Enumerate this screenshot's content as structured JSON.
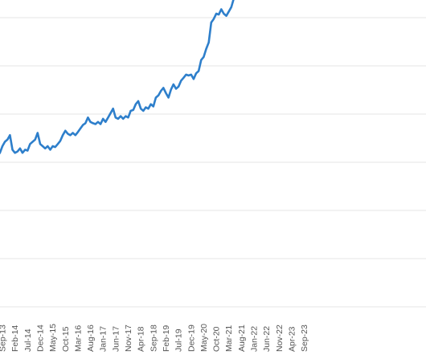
{
  "chart_data": {
    "type": "line",
    "title": "",
    "xlabel": "",
    "ylabel": "",
    "grid": true,
    "legend": "none",
    "y_gridline_count": 7,
    "tick_labels": [
      "Sep-13",
      "Feb-14",
      "Jul-14",
      "Dec-14",
      "May-15",
      "Oct-15",
      "Mar-16",
      "Aug-16",
      "Jan-17",
      "Jun-17",
      "Nov-17",
      "Apr-18",
      "Sep-18",
      "Feb-19",
      "Jul-19",
      "Dec-19",
      "May-20",
      "Oct-20",
      "Mar-21",
      "Aug-21",
      "Jan-22",
      "Jun-22",
      "Nov-22",
      "Apr-23",
      "Sep-23"
    ],
    "colors": {
      "line": "#2e7fcb",
      "grid": "#e6e6e6",
      "text": "#555555",
      "background": "#ffffff"
    },
    "series": [
      {
        "values": [
          [
            -3,
            3.0
          ],
          [
            -2,
            2.98
          ],
          [
            -1,
            3.05
          ],
          [
            0,
            3.2
          ],
          [
            1,
            3.3
          ],
          [
            2,
            3.35
          ],
          [
            3,
            3.45
          ],
          [
            4,
            3.12
          ],
          [
            5,
            3.05
          ],
          [
            6,
            3.08
          ],
          [
            7,
            3.15
          ],
          [
            8,
            3.05
          ],
          [
            9,
            3.12
          ],
          [
            10,
            3.1
          ],
          [
            11,
            3.25
          ],
          [
            12,
            3.3
          ],
          [
            13,
            3.35
          ],
          [
            14,
            3.5
          ],
          [
            15,
            3.25
          ],
          [
            16,
            3.2
          ],
          [
            17,
            3.15
          ],
          [
            18,
            3.2
          ],
          [
            19,
            3.12
          ],
          [
            20,
            3.2
          ],
          [
            21,
            3.18
          ],
          [
            22,
            3.25
          ],
          [
            23,
            3.32
          ],
          [
            24,
            3.45
          ],
          [
            25,
            3.55
          ],
          [
            26,
            3.48
          ],
          [
            27,
            3.45
          ],
          [
            28,
            3.5
          ],
          [
            29,
            3.45
          ],
          [
            30,
            3.52
          ],
          [
            31,
            3.6
          ],
          [
            32,
            3.68
          ],
          [
            33,
            3.72
          ],
          [
            34,
            3.85
          ],
          [
            35,
            3.75
          ],
          [
            36,
            3.72
          ],
          [
            37,
            3.7
          ],
          [
            38,
            3.75
          ],
          [
            39,
            3.7
          ],
          [
            40,
            3.82
          ],
          [
            41,
            3.75
          ],
          [
            42,
            3.85
          ],
          [
            43,
            3.95
          ],
          [
            44,
            4.05
          ],
          [
            45,
            3.85
          ],
          [
            46,
            3.82
          ],
          [
            47,
            3.88
          ],
          [
            48,
            3.82
          ],
          [
            49,
            3.88
          ],
          [
            50,
            3.85
          ],
          [
            51,
            4.0
          ],
          [
            52,
            4.02
          ],
          [
            53,
            4.15
          ],
          [
            54,
            4.22
          ],
          [
            55,
            4.05
          ],
          [
            56,
            4.0
          ],
          [
            57,
            4.08
          ],
          [
            58,
            4.05
          ],
          [
            59,
            4.15
          ],
          [
            60,
            4.1
          ],
          [
            61,
            4.3
          ],
          [
            62,
            4.35
          ],
          [
            63,
            4.45
          ],
          [
            64,
            4.52
          ],
          [
            65,
            4.4
          ],
          [
            66,
            4.3
          ],
          [
            67,
            4.48
          ],
          [
            68,
            4.6
          ],
          [
            69,
            4.5
          ],
          [
            70,
            4.55
          ],
          [
            71,
            4.68
          ],
          [
            72,
            4.75
          ],
          [
            73,
            4.82
          ],
          [
            74,
            4.8
          ],
          [
            75,
            4.82
          ],
          [
            76,
            4.72
          ],
          [
            77,
            4.85
          ],
          [
            78,
            4.9
          ],
          [
            79,
            5.15
          ],
          [
            80,
            5.22
          ],
          [
            81,
            5.4
          ],
          [
            82,
            5.55
          ],
          [
            83,
            6.0
          ],
          [
            84,
            6.08
          ],
          [
            85,
            6.2
          ],
          [
            86,
            6.18
          ],
          [
            87,
            6.3
          ],
          [
            88,
            6.2
          ],
          [
            89,
            6.15
          ],
          [
            90,
            6.25
          ],
          [
            91,
            6.35
          ],
          [
            92,
            6.55
          ],
          [
            93,
            6.62
          ],
          [
            94,
            6.6
          ],
          [
            95,
            6.7
          ],
          [
            96,
            6.78
          ],
          [
            97,
            7.0
          ],
          [
            98,
            6.85
          ],
          [
            99,
            6.7
          ],
          [
            100,
            6.75
          ],
          [
            101,
            6.78
          ],
          [
            102,
            6.72
          ],
          [
            103,
            6.75
          ],
          [
            104,
            6.62
          ],
          [
            105,
            6.8
          ]
        ]
      }
    ]
  }
}
